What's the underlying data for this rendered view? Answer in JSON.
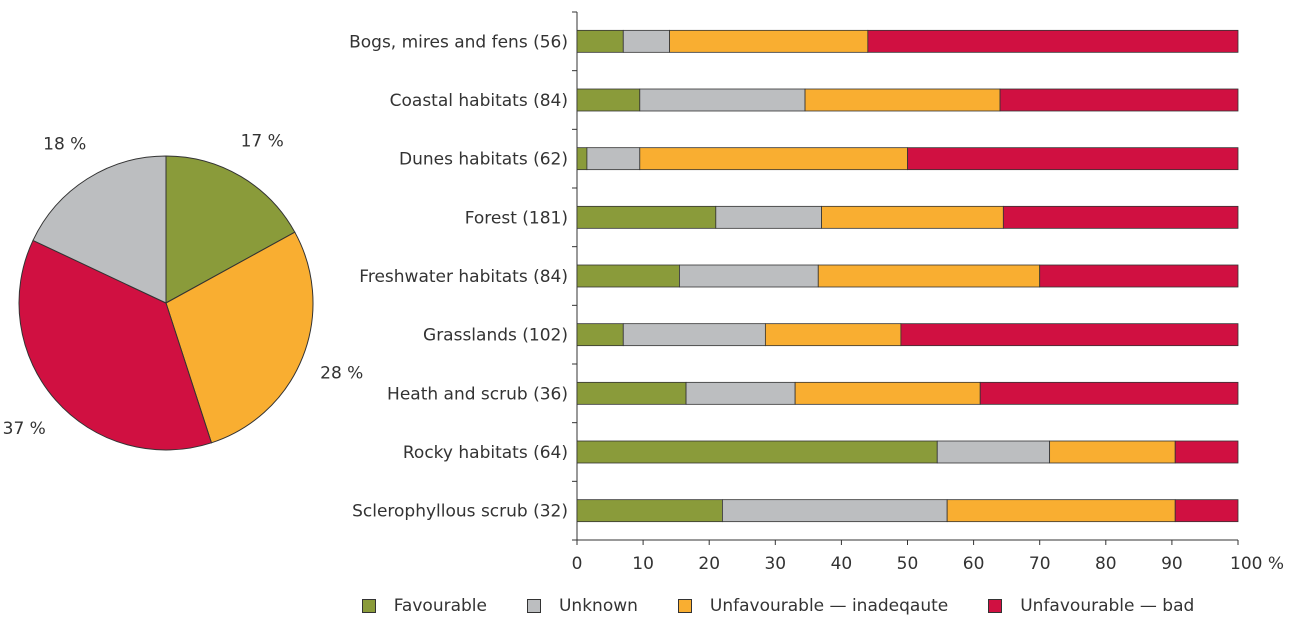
{
  "chart_data": [
    {
      "type": "pie",
      "slices": [
        {
          "category": "Favourable",
          "value": 17,
          "label": "17 %",
          "color": "#8a9b3a"
        },
        {
          "category": "Unfavourable — inadeqaute",
          "value": 28,
          "label": "28 %",
          "color": "#f9ae31"
        },
        {
          "category": "Unfavourable — bad",
          "value": 37,
          "label": "37 %",
          "color": "#d01041"
        },
        {
          "category": "Unknown",
          "value": 18,
          "label": "18 %",
          "color": "#bcbec0"
        }
      ]
    },
    {
      "type": "bar",
      "orientation": "horizontal",
      "stacked": true,
      "categories": [
        "Bogs, mires and fens (56)",
        "Coastal habitats (84)",
        "Dunes habitats (62)",
        "Forest (181)",
        "Freshwater habitats (84)",
        "Grasslands (102)",
        "Heath and scrub (36)",
        "Rocky habitats (64)",
        "Sclerophyllous scrub (32)"
      ],
      "series": [
        {
          "name": "Favourable",
          "color": "#8a9b3a",
          "values": [
            7,
            9.5,
            1.5,
            21,
            15.5,
            7,
            16.5,
            54.5,
            22
          ]
        },
        {
          "name": "Unknown",
          "color": "#bcbec0",
          "values": [
            7,
            25,
            8,
            16,
            21,
            21.5,
            16.5,
            17,
            34
          ]
        },
        {
          "name": "Unfavourable — inadeqaute",
          "color": "#f9ae31",
          "values": [
            30,
            29.5,
            40.5,
            27.5,
            33.5,
            20.5,
            28,
            19,
            34.5
          ]
        },
        {
          "name": "Unfavourable — bad",
          "color": "#d01041",
          "values": [
            56,
            36,
            50,
            35.5,
            30,
            51,
            39,
            9.5,
            9.5
          ]
        }
      ],
      "xlim": [
        0,
        100
      ],
      "xticks": [
        "0",
        "10",
        "20",
        "30",
        "40",
        "50",
        "60",
        "70",
        "80",
        "90",
        "100 %"
      ],
      "grid": false
    }
  ],
  "legend": {
    "placement": "bottom",
    "items": [
      {
        "label": "Favourable",
        "color": "#8a9b3a"
      },
      {
        "label": "Unknown",
        "color": "#bcbec0"
      },
      {
        "label": "Unfavourable — inadeqaute",
        "color": "#f9ae31"
      },
      {
        "label": "Unfavourable — bad",
        "color": "#d01041"
      }
    ]
  }
}
